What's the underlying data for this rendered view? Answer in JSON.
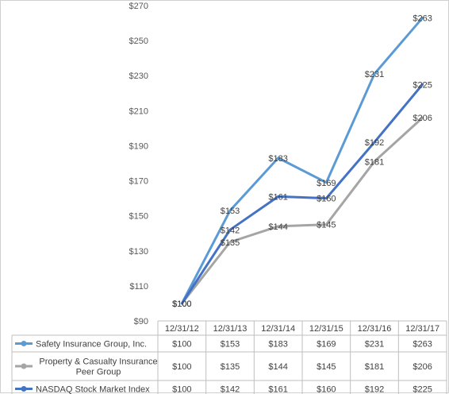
{
  "chart_data": {
    "type": "line",
    "categories": [
      "12/31/12",
      "12/31/13",
      "12/31/14",
      "12/31/15",
      "12/31/16",
      "12/31/17"
    ],
    "y_ticks": [
      "$90",
      "$110",
      "$130",
      "$150",
      "$170",
      "$190",
      "$210",
      "$230",
      "$250",
      "$270"
    ],
    "ylim": [
      90,
      270
    ],
    "grid": false,
    "legend_placement": "data-table-below",
    "series": [
      {
        "name_lines": [
          "Safety Insurance Group, Inc."
        ],
        "values": [
          100,
          153,
          183,
          169,
          231,
          263
        ],
        "labels": [
          "$100",
          "$153",
          "$183",
          "$169",
          "$231",
          "$263"
        ],
        "table_values": [
          "$100",
          "$153",
          "$183",
          "$169",
          "$231",
          "$263"
        ],
        "color": "#5b9bd5"
      },
      {
        "name_lines": [
          "Property & Casualty Insurance",
          "Peer Group"
        ],
        "values": [
          100,
          135,
          144,
          145,
          181,
          206
        ],
        "labels": [
          "$100",
          "$135",
          "$144",
          "$145",
          "$181",
          "$206"
        ],
        "table_values": [
          "$100",
          "$135",
          "$144",
          "$145",
          "$181",
          "$206"
        ],
        "color": "#a5a5a5"
      },
      {
        "name_lines": [
          "NASDAQ Stock Market Index"
        ],
        "values": [
          100,
          142,
          161,
          160,
          192,
          225
        ],
        "labels": [
          "$100",
          "$142",
          "$161",
          "$160",
          "$192",
          "$225"
        ],
        "table_values": [
          "$100",
          "$142",
          "$161",
          "$160",
          "$192",
          "$225"
        ],
        "color": "#4472c4"
      }
    ]
  }
}
